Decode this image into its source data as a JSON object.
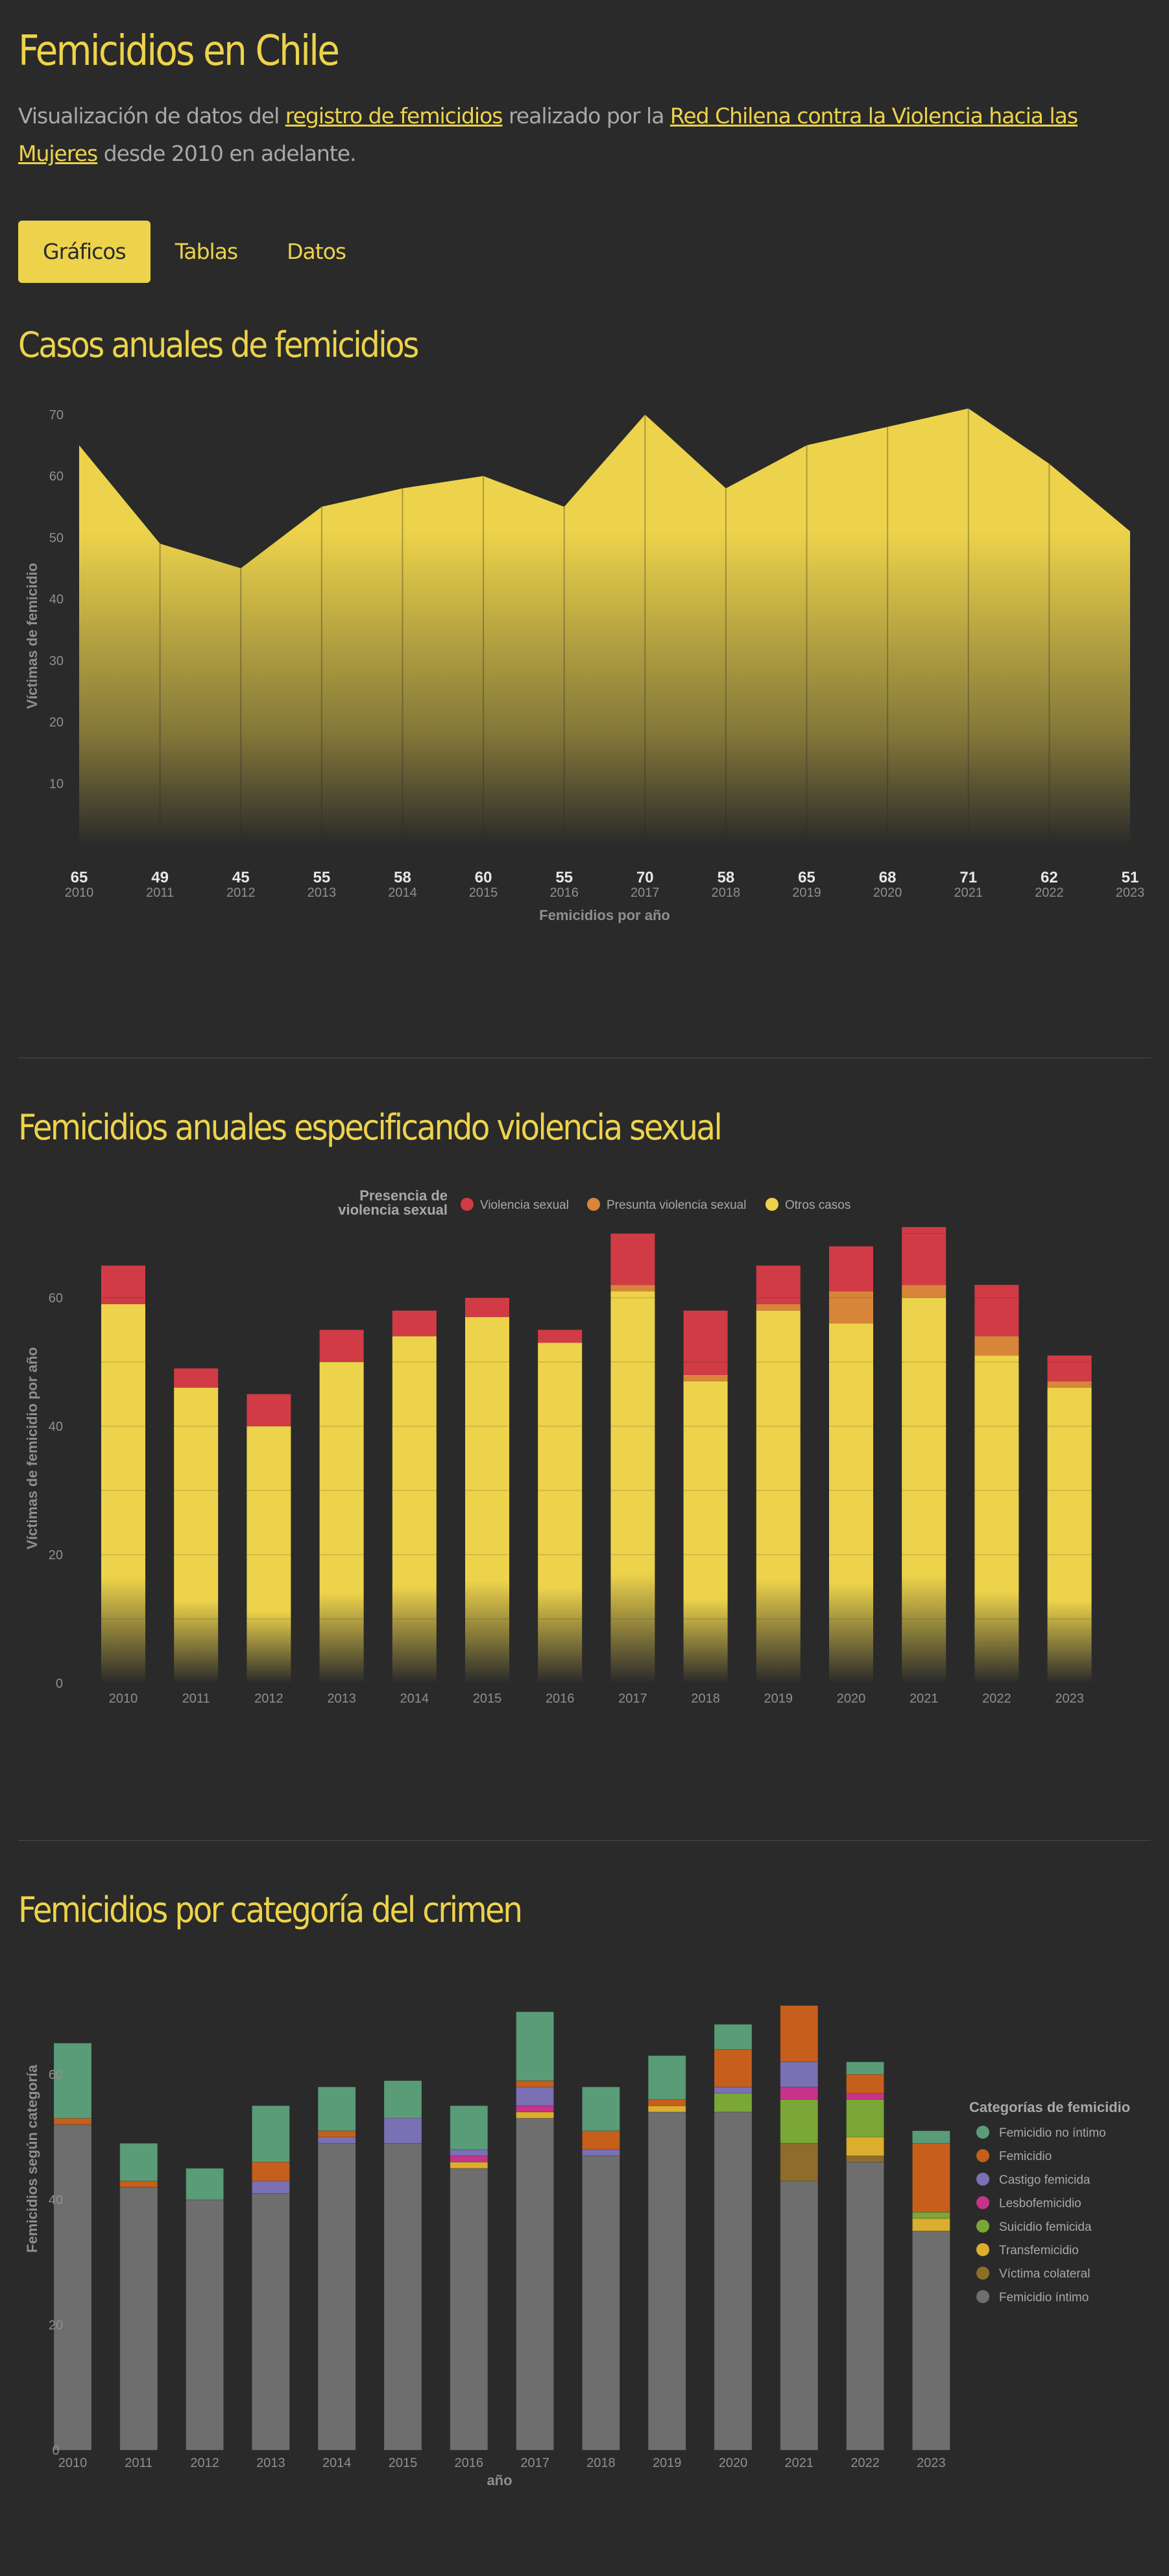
{
  "header": {
    "title": "Femicidios en Chile",
    "intro_prefix": "Visualización de datos del ",
    "link1": "registro de femicidios",
    "intro_mid": " realizado por la ",
    "link2": "Red Chilena contra la Violencia hacia las Mujeres",
    "intro_suffix": " desde 2010 en adelante."
  },
  "tabs": [
    {
      "label": "Gráficos",
      "active": true
    },
    {
      "label": "Tablas",
      "active": false
    },
    {
      "label": "Datos",
      "active": false
    }
  ],
  "colors": {
    "accent": "#edd34b",
    "background": "#2a2a2a",
    "violencia_sexual": "#d13b45",
    "presunta": "#d8853a",
    "otros": "#edd34b"
  },
  "sections": {
    "annual_title": "Casos anuales de femicidios",
    "sexual_title": "Femicidios anuales especificando violencia sexual",
    "category_title": "Femicidios por categoría del crimen"
  },
  "chart_data": [
    {
      "type": "area",
      "title": "Casos anuales de femicidios",
      "ylabel": "Víctimas de femicidio",
      "xlabel": "Femicidios por año",
      "x": [
        "2010",
        "2011",
        "2012",
        "2013",
        "2014",
        "2015",
        "2016",
        "2017",
        "2018",
        "2019",
        "2020",
        "2021",
        "2022",
        "2023"
      ],
      "values": [
        65,
        49,
        45,
        55,
        58,
        60,
        55,
        70,
        58,
        65,
        68,
        71,
        62,
        51
      ],
      "yticks": [
        10,
        20,
        30,
        40,
        50,
        60,
        70
      ],
      "ylim": [
        0,
        72
      ],
      "grid": false
    },
    {
      "type": "bar",
      "stacked": true,
      "title": "Femicidios anuales especificando violencia sexual",
      "ylabel": "Víctimas de femicidio por año",
      "legend_title": "Presencia de violencia sexual",
      "legend_position": "top",
      "categories": [
        "2010",
        "2011",
        "2012",
        "2013",
        "2014",
        "2015",
        "2016",
        "2017",
        "2018",
        "2019",
        "2020",
        "2021",
        "2022",
        "2023"
      ],
      "yticks": [
        0,
        20,
        40,
        60
      ],
      "ylim": [
        0,
        72
      ],
      "grid": true,
      "series": [
        {
          "name": "Violencia sexual",
          "color": "#d13b45",
          "values": [
            6,
            3,
            5,
            5,
            4,
            3,
            2,
            8,
            10,
            6,
            7,
            9,
            8,
            4
          ]
        },
        {
          "name": "Presunta violencia sexual",
          "color": "#d8853a",
          "values": [
            0,
            0,
            0,
            0,
            0,
            0,
            0,
            1,
            1,
            1,
            5,
            2,
            3,
            1
          ]
        },
        {
          "name": "Otros casos",
          "color": "#edd34b",
          "values": [
            59,
            46,
            40,
            50,
            54,
            57,
            53,
            61,
            47,
            58,
            56,
            60,
            51,
            46
          ]
        }
      ]
    },
    {
      "type": "bar",
      "stacked": true,
      "title": "Femicidios por categoría del crimen",
      "ylabel": "Femicidios según categoría",
      "xlabel": "año",
      "legend_title": "Categorías de femicidio",
      "legend_position": "right",
      "categories": [
        "2010",
        "2011",
        "2012",
        "2013",
        "2014",
        "2015",
        "2016",
        "2017",
        "2018",
        "2019",
        "2020",
        "2021",
        "2022",
        "2023"
      ],
      "yticks": [
        0,
        20,
        40,
        60
      ],
      "ylim": [
        0,
        72
      ],
      "grid": false,
      "series": [
        {
          "name": "Femicidio íntimo",
          "color": "#6e6e6e",
          "values": [
            52,
            42,
            40,
            41,
            49,
            49,
            45,
            53,
            47,
            54,
            54,
            43,
            46,
            35
          ]
        },
        {
          "name": "Víctima colateral",
          "color": "#8e6d2a",
          "values": [
            0,
            0,
            0,
            0,
            0,
            0,
            0,
            0,
            0,
            0,
            0,
            6,
            1,
            0
          ]
        },
        {
          "name": "Transfemicidio",
          "color": "#dcae2d",
          "values": [
            0,
            0,
            0,
            0,
            0,
            0,
            1,
            1,
            0,
            1,
            0,
            0,
            3,
            2
          ]
        },
        {
          "name": "Suicidio femicida",
          "color": "#7aa736",
          "values": [
            0,
            0,
            0,
            0,
            0,
            0,
            0,
            0,
            0,
            0,
            3,
            7,
            6,
            1
          ]
        },
        {
          "name": "Lesbofemicidio",
          "color": "#c7338a",
          "values": [
            0,
            0,
            0,
            0,
            0,
            0,
            1,
            1,
            0,
            0,
            0,
            2,
            1,
            0
          ]
        },
        {
          "name": "Castigo femicida",
          "color": "#7a70b4",
          "values": [
            0,
            0,
            0,
            2,
            1,
            4,
            1,
            3,
            1,
            0,
            1,
            4,
            0,
            0
          ]
        },
        {
          "name": "Femicidio",
          "color": "#c65f1b",
          "values": [
            1,
            1,
            0,
            3,
            1,
            0,
            0,
            1,
            3,
            1,
            6,
            9,
            3,
            11
          ]
        },
        {
          "name": "Femicidio no íntimo",
          "color": "#5a9c78",
          "values": [
            12,
            6,
            5,
            9,
            7,
            6,
            7,
            11,
            7,
            7,
            4,
            0,
            2,
            2
          ]
        }
      ]
    }
  ]
}
